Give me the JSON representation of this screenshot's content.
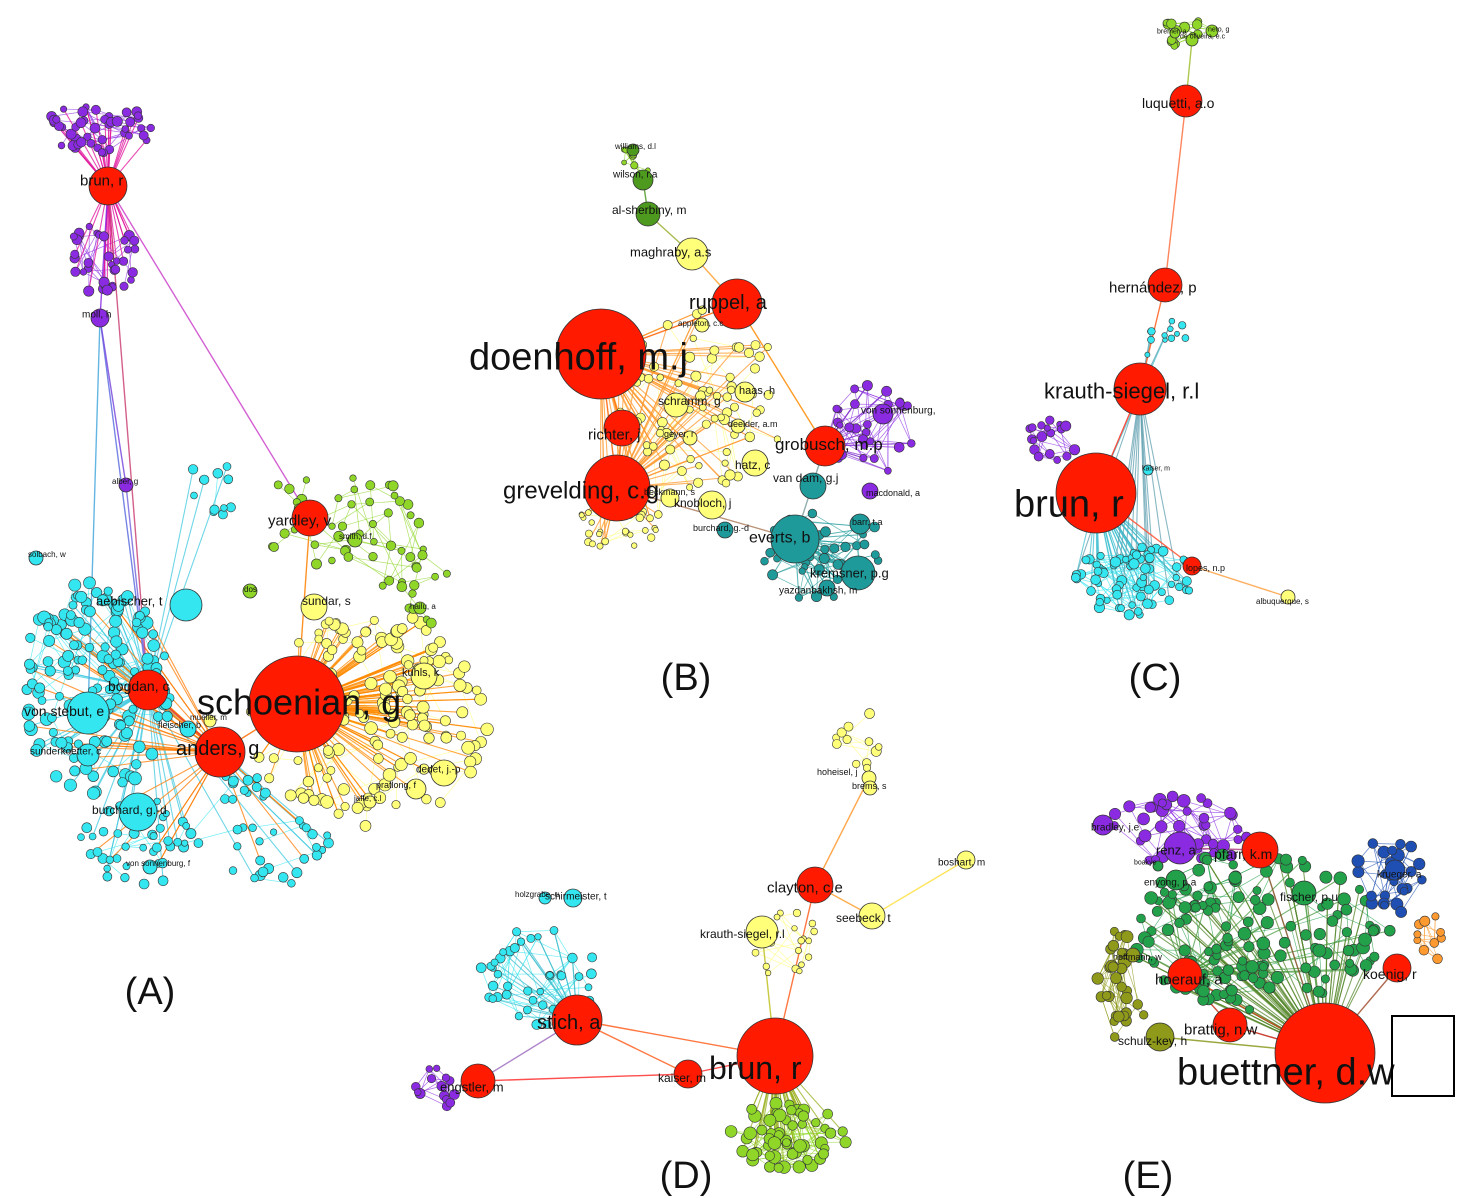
{
  "colors": {
    "red": "#ff1a00",
    "darkred": "#e02020",
    "yellow": "#ffff7a",
    "cyan": "#33e6f0",
    "violet": "#8a2be2",
    "lime": "#8fd628",
    "dgreen": "#4d9a1f",
    "teal": "#1f9a9a",
    "olive": "#8f9a1a",
    "green": "#22a04a",
    "blue": "#1f4fb3",
    "orange": "#ff9a30"
  },
  "panels": [
    {
      "id": "A",
      "label": "(A)",
      "labels": [
        "brun, r",
        "moll, h",
        "alber, g",
        "yardley, v",
        "aebischer, t",
        "bogdan, c",
        "schoenian, g",
        "von stebut, e",
        "anders, g",
        "sunderkoetter, c",
        "burchard, g.-d",
        "sundar, s",
        "kuhls, k",
        "dedet, j.-p",
        "pratlong, f",
        "fleischer, b",
        "mueller, m",
        "von sonnenburg, f",
        "smith, d.f",
        "dos",
        "solbach, w",
        "hailu, a",
        "jaffe, c.l"
      ]
    },
    {
      "id": "B",
      "label": "(B)",
      "labels": [
        "wilson, r.a",
        "al-sherbiny, m",
        "maghraby, a.s",
        "ruppel, a",
        "doenhoff, m.j",
        "richter, j",
        "grevelding, c.g",
        "grobusch, m.p",
        "schramm, g",
        "haas, h",
        "hatz, c",
        "knobloch, j",
        "van dam, g.j",
        "everts, b",
        "kremsner, p.g",
        "von sonnenburg,",
        "yazdanbakhsh, m",
        "burchard, g.-d",
        "beckmann, s",
        "barr, t.a",
        "macdonald, a",
        "williams, d.l",
        "appleton, c.c",
        "geyer, r",
        "deelder, a.m"
      ]
    },
    {
      "id": "C",
      "label": "(C)",
      "labels": [
        "luquetti, a.o",
        "hernández, p",
        "krauth-siegel, r.l",
        "brun, r",
        "lopes, n.p",
        "albuquerque, s",
        "kaiser, m",
        "de oliveira, e.c",
        "bremer, a",
        "neto, g"
      ]
    },
    {
      "id": "D",
      "label": "(D)",
      "labels": [
        "clayton, c.e",
        "seebeck, t",
        "boshart, m",
        "hoheisel, j",
        "brems, s",
        "krauth-siegel, r.l",
        "schirmeister, t",
        "holzgrabe, u",
        "stich, a",
        "brun, r",
        "kaiser, m",
        "engstler, m"
      ]
    },
    {
      "id": "E",
      "label": "(E)",
      "labels": [
        "bradley, j.e",
        "renz, a",
        "pfarr, k.m",
        "fischer, p.u",
        "krueger, a",
        "enyong, p.a",
        "hoerauf, a",
        "koenig, r",
        "hoffmann, w",
        "brattig, n.w",
        "schulz-key, h",
        "buettner, d.w",
        "boakye"
      ]
    }
  ]
}
